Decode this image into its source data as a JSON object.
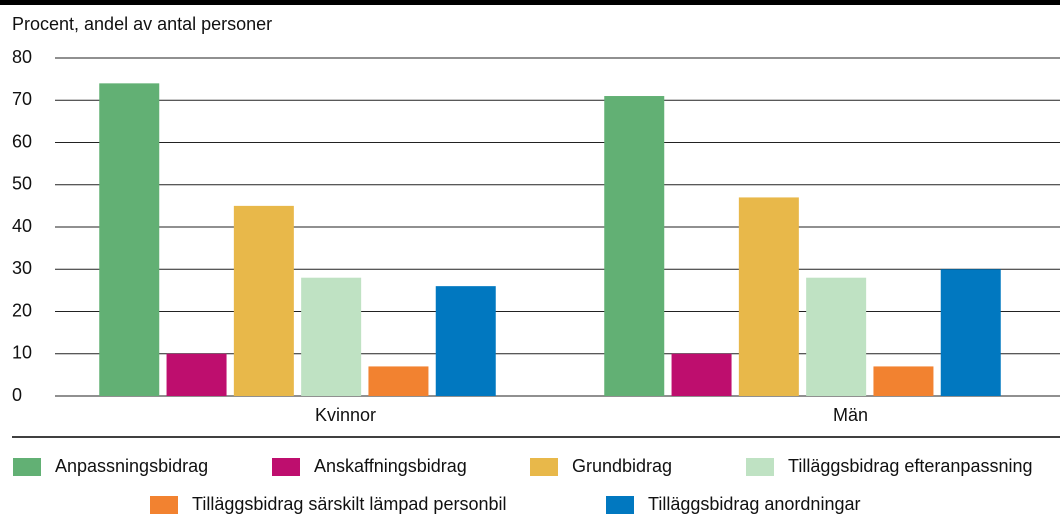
{
  "chart_data": {
    "type": "bar",
    "ylabel": "Procent, andel av antal personer",
    "categories": [
      "Kvinnor",
      "Män"
    ],
    "series": [
      {
        "name": "Anpassningsbidrag",
        "color": "#62b074",
        "values": [
          74,
          71
        ]
      },
      {
        "name": "Anskaffningsbidrag",
        "color": "#be0e6e",
        "values": [
          10,
          10
        ]
      },
      {
        "name": "Grundbidrag",
        "color": "#e8b84a",
        "values": [
          45,
          47
        ]
      },
      {
        "name": "Tilläggsbidrag efteranpassning",
        "color": "#bfe2c3",
        "values": [
          28,
          28
        ]
      },
      {
        "name": "Tilläggsbidrag särskilt lämpad personbil",
        "color": "#f28230",
        "values": [
          7,
          7
        ]
      },
      {
        "name": "Tilläggsbidrag anordningar",
        "color": "#0178c0",
        "values": [
          26,
          30
        ]
      }
    ],
    "ylim": [
      0,
      80
    ],
    "yticks": [
      0,
      10,
      20,
      30,
      40,
      50,
      60,
      70,
      80
    ],
    "grid": true
  }
}
